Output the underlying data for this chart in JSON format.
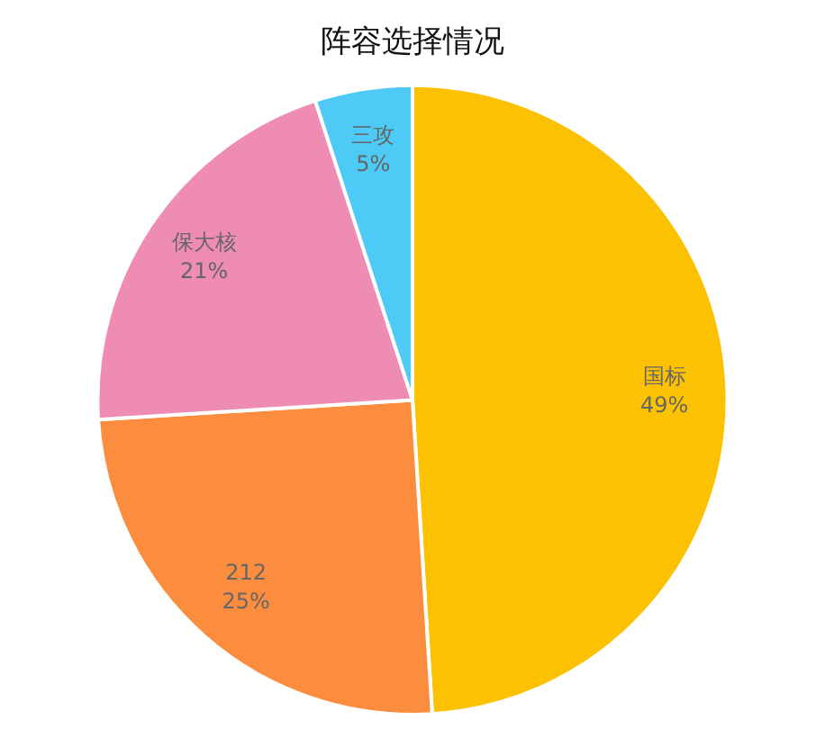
{
  "chart_data": {
    "type": "pie",
    "title": "阵容选择情况",
    "categories": [
      "国标",
      "212",
      "保大核",
      "三攻"
    ],
    "values": [
      49,
      25,
      21,
      5
    ],
    "value_labels": [
      "49%",
      "25%",
      "21%",
      "5%"
    ],
    "colors": [
      "#fcc101",
      "#fd8d3e",
      "#ee8cb4",
      "#4dcaf6"
    ],
    "legend": false
  }
}
